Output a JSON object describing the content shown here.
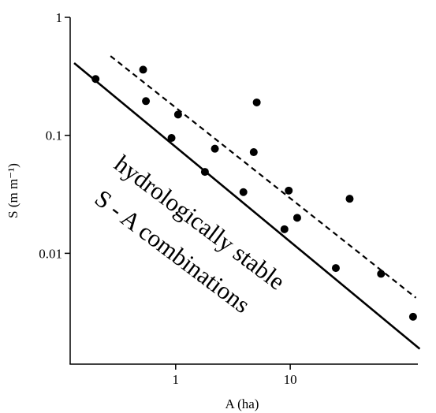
{
  "chart_data": {
    "type": "scatter",
    "xlabel": "A (ha)",
    "ylabel": "S (m m⁻¹)",
    "x_scale": "log",
    "y_scale": "log",
    "xlim": [
      0.12,
      130
    ],
    "ylim": [
      0.00115,
      1
    ],
    "x_ticks": [
      {
        "value": 1,
        "label": "1"
      },
      {
        "value": 10,
        "label": "10"
      }
    ],
    "y_ticks": [
      {
        "value": 1,
        "label": "1"
      },
      {
        "value": 0.1,
        "label": "0.1"
      },
      {
        "value": 0.01,
        "label": "0.01"
      }
    ],
    "grid": false,
    "series": [
      {
        "marker": "circle",
        "points": [
          {
            "x": 0.2,
            "y": 0.3
          },
          {
            "x": 0.52,
            "y": 0.36
          },
          {
            "x": 0.55,
            "y": 0.195
          },
          {
            "x": 1.05,
            "y": 0.15
          },
          {
            "x": 0.92,
            "y": 0.095
          },
          {
            "x": 2.2,
            "y": 0.077
          },
          {
            "x": 1.8,
            "y": 0.049
          },
          {
            "x": 5.1,
            "y": 0.19
          },
          {
            "x": 4.8,
            "y": 0.072
          },
          {
            "x": 3.9,
            "y": 0.033
          },
          {
            "x": 9.7,
            "y": 0.034
          },
          {
            "x": 11.5,
            "y": 0.02
          },
          {
            "x": 8.9,
            "y": 0.016
          },
          {
            "x": 33,
            "y": 0.029
          },
          {
            "x": 25,
            "y": 0.0075
          },
          {
            "x": 62,
            "y": 0.0067
          },
          {
            "x": 118,
            "y": 0.0029
          }
        ]
      }
    ],
    "lines": [
      {
        "style": "solid",
        "from": {
          "x": 0.13,
          "y": 0.41
        },
        "to": {
          "x": 135,
          "y": 0.00155
        }
      },
      {
        "style": "dashed",
        "from": {
          "x": 0.27,
          "y": 0.47
        },
        "to": {
          "x": 125,
          "y": 0.0042
        }
      }
    ],
    "annotations": [
      {
        "text": "hydrologically stable"
      },
      {
        "text": "S - A combinations"
      }
    ]
  }
}
